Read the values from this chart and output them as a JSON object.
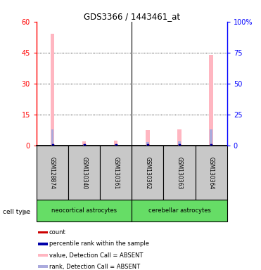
{
  "title": "GDS3366 / 1443461_at",
  "samples": [
    "GSM128874",
    "GSM130340",
    "GSM130361",
    "GSM130362",
    "GSM130363",
    "GSM130364"
  ],
  "pink_bars": [
    54,
    2,
    2.5,
    7.5,
    8,
    44
  ],
  "blue_bars": [
    8,
    0.8,
    0.8,
    1.8,
    2,
    8
  ],
  "red_squares": [
    0.5,
    0.5,
    0.5,
    0.5,
    0.5,
    0.5
  ],
  "blue_squares": [
    0.5,
    0.5,
    0.5,
    0.5,
    0.5,
    0.5
  ],
  "ylim_left": [
    0,
    60
  ],
  "ylim_right": [
    0,
    100
  ],
  "yticks_left": [
    0,
    15,
    30,
    45,
    60
  ],
  "yticks_right": [
    0,
    25,
    50,
    75,
    100
  ],
  "ytick_labels_right": [
    "0",
    "25",
    "50",
    "75",
    "100%"
  ],
  "pink_color": "#FFB6C1",
  "light_blue_color": "#AAAADD",
  "red_color": "#CC0000",
  "blue_color": "#0000AA",
  "sample_box_color": "#C8C8C8",
  "group1_color": "#66DD66",
  "group2_color": "#66DD66",
  "group1_name": "neocortical astrocytes",
  "group2_name": "cerebellar astrocytes",
  "legend_items": [
    {
      "label": "count",
      "color": "#CC0000"
    },
    {
      "label": "percentile rank within the sample",
      "color": "#0000AA"
    },
    {
      "label": "value, Detection Call = ABSENT",
      "color": "#FFB6C1"
    },
    {
      "label": "rank, Detection Call = ABSENT",
      "color": "#AAAADD"
    }
  ]
}
